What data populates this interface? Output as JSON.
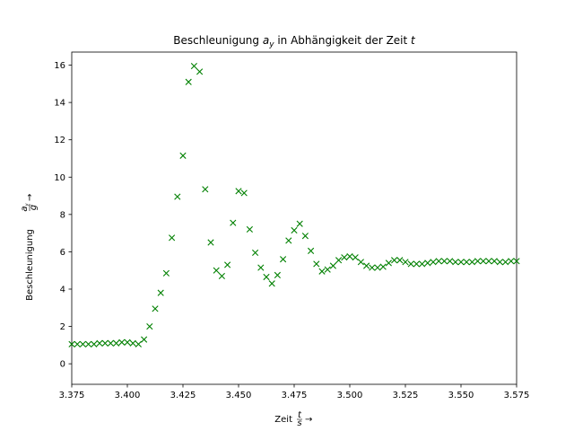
{
  "chart_data": {
    "type": "scatter",
    "title_prefix": "Beschleunigung ",
    "title_var": "a",
    "title_sub": "y",
    "title_suffix": " in Abhängigkeit der Zeit ",
    "title_end": "t",
    "xlabel_prefix": "Zeit ",
    "xlabel_num": "t",
    "xlabel_den": "s",
    "ylabel_prefix": "Beschleunigung ",
    "ylabel_num": "a",
    "ylabel_num_sub": "y",
    "ylabel_den": "g",
    "arrow": "→",
    "xlim": [
      3.375,
      3.575
    ],
    "ylim": [
      -1.1,
      16.7
    ],
    "xticks": [
      "3.375",
      "3.400",
      "3.425",
      "3.450",
      "3.475",
      "3.500",
      "3.525",
      "3.550",
      "3.575"
    ],
    "yticks": [
      "0",
      "2",
      "4",
      "6",
      "8",
      "10",
      "12",
      "14",
      "16"
    ],
    "marker": "x",
    "color": "#008000",
    "series": [
      {
        "x": [
          3.375,
          3.3775,
          3.38,
          3.3825,
          3.385,
          3.3875,
          3.39,
          3.3925,
          3.395,
          3.3975,
          3.4,
          3.4025,
          3.405,
          3.4075,
          3.41,
          3.4125,
          3.415,
          3.4175,
          3.42,
          3.4225,
          3.425,
          3.4275,
          3.43,
          3.4325,
          3.435,
          3.4375,
          3.44,
          3.4425,
          3.445,
          3.4475,
          3.45,
          3.4525,
          3.455,
          3.4575,
          3.46,
          3.4625,
          3.465,
          3.4675,
          3.47,
          3.4725,
          3.475,
          3.4775,
          3.48,
          3.4825,
          3.485,
          3.4875,
          3.49,
          3.4925,
          3.495,
          3.4975,
          3.5,
          3.5025,
          3.505,
          3.5075,
          3.51,
          3.5125,
          3.515,
          3.5175,
          3.52,
          3.5225,
          3.525,
          3.5275,
          3.53,
          3.5325,
          3.535,
          3.5375,
          3.54,
          3.5425,
          3.545,
          3.5475,
          3.55,
          3.5525,
          3.555,
          3.5575,
          3.56,
          3.5625,
          3.565,
          3.5675,
          3.57,
          3.5725,
          3.575
        ],
        "y": [
          1.05,
          1.05,
          1.05,
          1.05,
          1.05,
          1.1,
          1.1,
          1.1,
          1.1,
          1.15,
          1.15,
          1.1,
          1.05,
          1.3,
          2.0,
          2.95,
          3.8,
          4.85,
          6.75,
          8.95,
          11.15,
          15.1,
          15.95,
          15.65,
          9.35,
          6.5,
          5.0,
          4.7,
          5.3,
          7.55,
          9.25,
          9.15,
          7.2,
          5.95,
          5.15,
          4.65,
          4.3,
          4.75,
          5.6,
          6.6,
          7.15,
          7.5,
          6.85,
          6.05,
          5.35,
          4.95,
          5.05,
          5.25,
          5.55,
          5.7,
          5.75,
          5.7,
          5.45,
          5.25,
          5.15,
          5.15,
          5.2,
          5.4,
          5.55,
          5.55,
          5.45,
          5.35,
          5.35,
          5.35,
          5.4,
          5.45,
          5.5,
          5.5,
          5.5,
          5.45,
          5.45,
          5.45,
          5.45,
          5.5,
          5.5,
          5.5,
          5.5,
          5.45,
          5.45,
          5.5,
          5.5
        ]
      }
    ]
  }
}
